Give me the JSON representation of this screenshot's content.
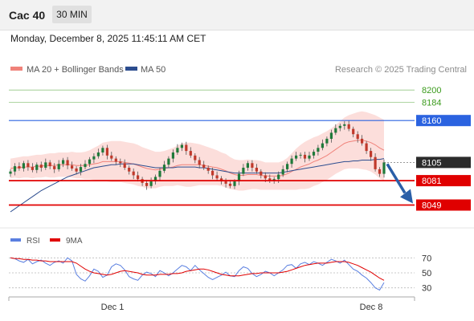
{
  "header": {
    "instrument": "Cac 40",
    "timeframe": "30 MIN"
  },
  "datetime": "Monday, December 8, 2025 11:45:11 AM CET",
  "colors": {
    "ma20": "#f0827a",
    "ma50": "#2c4d8f",
    "bollinger_fill": "#fbd6d2",
    "candle_up": "#1f7a3a",
    "candle_down": "#c0392b",
    "target": "#3b9b1d",
    "resistance": "#2b63e0",
    "support": "#e00000",
    "last": "#2b2b2b",
    "rsi": "#5a7fe0",
    "rsi_ma": "#e00000",
    "arrow": "#2a5fa8"
  },
  "chart_data": [
    {
      "type": "candlestick",
      "legend": [
        {
          "name": "MA 20 + Bollinger Bands",
          "color": "#f0827a"
        },
        {
          "name": "MA 50",
          "color": "#2c4d8f"
        }
      ],
      "annotation": "Research © 2025 Trading Central",
      "x_ticks": [
        "Dec 1",
        "Dec 8"
      ],
      "ylim": [
        8020,
        8215
      ],
      "levels": [
        {
          "value": 8200,
          "label": "8200",
          "kind": "target"
        },
        {
          "value": 8184,
          "label": "8184",
          "kind": "target"
        },
        {
          "value": 8160,
          "label": "8160",
          "kind": "resistance"
        },
        {
          "value": 8105,
          "label": "8105",
          "kind": "last"
        },
        {
          "value": 8081,
          "label": "8081",
          "kind": "support"
        },
        {
          "value": 8049,
          "label": "8049",
          "kind": "support"
        }
      ],
      "close": [
        8093,
        8100,
        8097,
        8104,
        8099,
        8095,
        8102,
        8098,
        8105,
        8100,
        8096,
        8103,
        8108,
        8101,
        8097,
        8093,
        8099,
        8103,
        8109,
        8113,
        8118,
        8124,
        8114,
        8110,
        8106,
        8104,
        8098,
        8093,
        8088,
        8083,
        8078,
        8074,
        8080,
        8086,
        8094,
        8102,
        8110,
        8118,
        8124,
        8128,
        8120,
        8114,
        8108,
        8102,
        8098,
        8094,
        8088,
        8084,
        8080,
        8077,
        8074,
        8080,
        8090,
        8098,
        8104,
        8098,
        8093,
        8088,
        8084,
        8081,
        8083,
        8089,
        8096,
        8103,
        8110,
        8114,
        8115,
        8110,
        8114,
        8119,
        8124,
        8130,
        8136,
        8144,
        8150,
        8153,
        8155,
        8149,
        8142,
        8136,
        8130,
        8120,
        8112,
        8096,
        8090,
        8105
      ],
      "ma20": [
        8097,
        8098,
        8098,
        8099,
        8099,
        8099,
        8100,
        8100,
        8101,
        8101,
        8101,
        8102,
        8102,
        8102,
        8102,
        8101,
        8101,
        8101,
        8102,
        8103,
        8104,
        8106,
        8106,
        8106,
        8106,
        8106,
        8105,
        8104,
        8103,
        8101,
        8099,
        8097,
        8096,
        8095,
        8096,
        8097,
        8098,
        8099,
        8101,
        8102,
        8102,
        8102,
        8102,
        8102,
        8101,
        8100,
        8099,
        8098,
        8096,
        8094,
        8091,
        8089,
        8088,
        8088,
        8089,
        8089,
        8089,
        8088,
        8087,
        8087,
        8087,
        8087,
        8088,
        8090,
        8093,
        8096,
        8099,
        8101,
        8103,
        8106,
        8108,
        8111,
        8114,
        8118,
        8122,
        8126,
        8130,
        8132,
        8133,
        8134,
        8134,
        8133,
        8131,
        8128,
        8124,
        8121
      ],
      "ma50": [
        8040,
        8044,
        8048,
        8052,
        8056,
        8060,
        8064,
        8068,
        8071,
        8074,
        8077,
        8080,
        8083,
        8086,
        8088,
        8090,
        8092,
        8094,
        8096,
        8098,
        8099,
        8100,
        8101,
        8102,
        8102,
        8103,
        8103,
        8103,
        8103,
        8102,
        8101,
        8100,
        8099,
        8098,
        8098,
        8098,
        8098,
        8098,
        8099,
        8099,
        8099,
        8099,
        8099,
        8098,
        8098,
        8097,
        8096,
        8095,
        8094,
        8093,
        8092,
        8091,
        8091,
        8091,
        8091,
        8091,
        8091,
        8091,
        8091,
        8091,
        8091,
        8091,
        8092,
        8093,
        8094,
        8095,
        8096,
        8097,
        8098,
        8099,
        8100,
        8101,
        8102,
        8103,
        8104,
        8105,
        8106,
        8106,
        8107,
        8107,
        8108,
        8108,
        8108,
        8109,
        8109,
        8110
      ],
      "band_width": [
        13,
        13,
        14,
        14,
        14,
        15,
        15,
        15,
        15,
        16,
        16,
        16,
        16,
        16,
        17,
        17,
        17,
        18,
        19,
        21,
        23,
        25,
        26,
        27,
        27,
        27,
        27,
        27,
        27,
        27,
        26,
        26,
        25,
        24,
        23,
        23,
        24,
        25,
        26,
        28,
        29,
        29,
        28,
        27,
        26,
        25,
        24,
        23,
        22,
        22,
        21,
        20,
        20,
        20,
        20,
        19,
        19,
        19,
        18,
        18,
        18,
        18,
        19,
        21,
        24,
        27,
        29,
        31,
        32,
        32,
        32,
        32,
        32,
        32,
        32,
        33,
        34,
        35,
        36,
        37,
        38,
        38,
        38,
        39,
        40,
        40
      ]
    },
    {
      "type": "line",
      "legend": [
        {
          "name": "RSI",
          "color": "#5a7fe0"
        },
        {
          "name": "9MA",
          "color": "#e00000"
        }
      ],
      "y_ticks": [
        70,
        50,
        30
      ],
      "ylim": [
        20,
        80
      ],
      "rsi": [
        70,
        69,
        66,
        64,
        68,
        62,
        65,
        67,
        63,
        60,
        64,
        66,
        63,
        70,
        66,
        48,
        42,
        39,
        46,
        55,
        52,
        44,
        47,
        58,
        62,
        60,
        54,
        45,
        42,
        40,
        47,
        51,
        49,
        45,
        53,
        50,
        46,
        50,
        55,
        60,
        58,
        53,
        60,
        54,
        49,
        44,
        41,
        44,
        47,
        51,
        46,
        45,
        53,
        58,
        56,
        49,
        45,
        48,
        52,
        50,
        46,
        50,
        54,
        60,
        61,
        56,
        62,
        64,
        61,
        65,
        63,
        60,
        64,
        68,
        66,
        63,
        67,
        61,
        55,
        52,
        47,
        43,
        37,
        30,
        27,
        37
      ],
      "rsi_ma": [
        70,
        69,
        69,
        68,
        68,
        67,
        67,
        66,
        66,
        65,
        65,
        65,
        65,
        65,
        65,
        63,
        59,
        55,
        52,
        50,
        49,
        48,
        47,
        48,
        50,
        52,
        53,
        52,
        51,
        50,
        48,
        47,
        47,
        47,
        48,
        48,
        48,
        49,
        49,
        50,
        52,
        53,
        54,
        55,
        55,
        54,
        52,
        50,
        48,
        47,
        46,
        46,
        46,
        47,
        48,
        49,
        49,
        50,
        50,
        50,
        50,
        50,
        51,
        52,
        54,
        56,
        58,
        60,
        61,
        62,
        63,
        63,
        63,
        64,
        65,
        65,
        65,
        64,
        62,
        60,
        57,
        54,
        51,
        47,
        43,
        40
      ]
    }
  ]
}
